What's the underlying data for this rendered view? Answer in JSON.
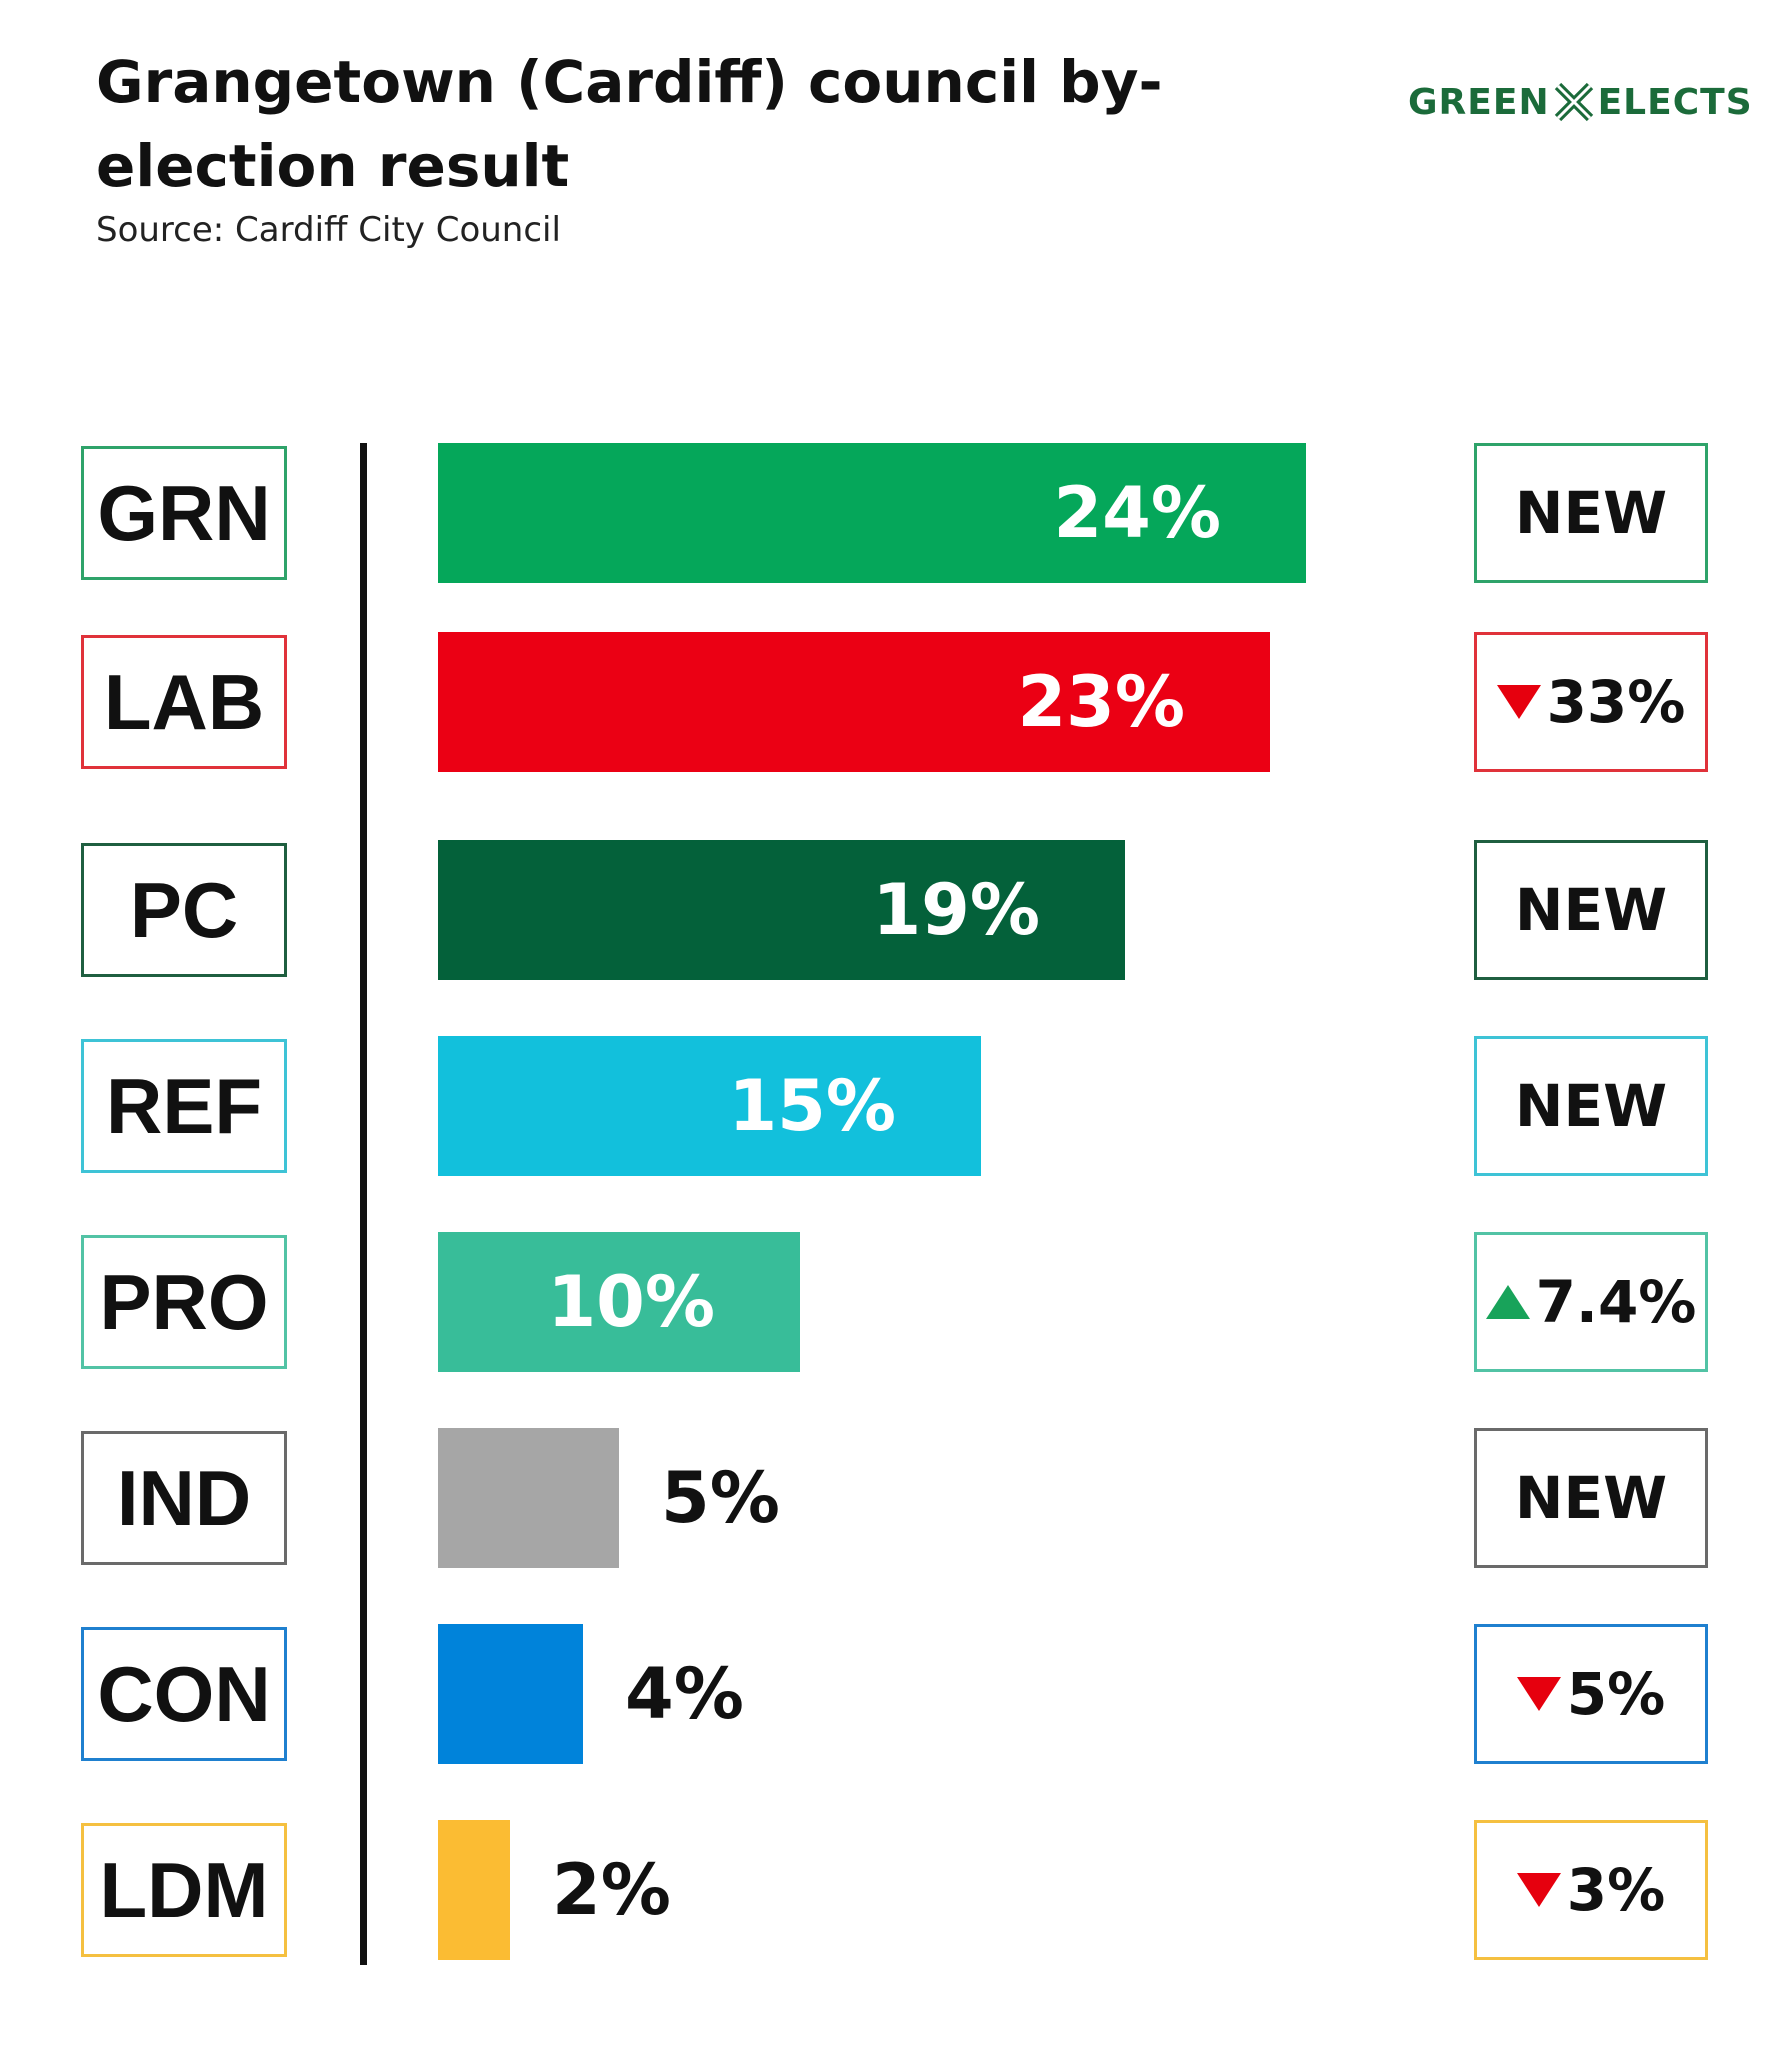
{
  "header": {
    "title": "Grangetown (Cardiff) council by-election result",
    "subtitle": "Source: Cardiff City Council",
    "logo_left": "GREEN",
    "logo_right": "ELECTS",
    "logo_color": "#1b6b3a"
  },
  "chart_data": {
    "type": "bar",
    "orientation": "horizontal",
    "title": "Grangetown (Cardiff) council by-election result",
    "subtitle": "Source: Cardiff City Council",
    "xlabel": "",
    "ylabel": "",
    "xlim": [
      0,
      30
    ],
    "grid": false,
    "legend": "none",
    "categories": [
      "GRN",
      "LAB",
      "PC",
      "REF",
      "PRO",
      "IND",
      "CON",
      "LDM"
    ],
    "values": [
      24,
      23,
      19,
      15,
      10,
      5,
      4,
      2
    ],
    "value_labels": [
      "24%",
      "23%",
      "19%",
      "15%",
      "10%",
      "5%",
      "4%",
      "2%"
    ],
    "changes": [
      "NEW",
      "33%",
      "NEW",
      "NEW",
      "7.4%",
      "NEW",
      "5%",
      "3%"
    ],
    "change_direction": [
      "none",
      "down",
      "none",
      "none",
      "up",
      "none",
      "down",
      "down"
    ],
    "colors": [
      "#05a75a",
      "#eb0014",
      "#04613a",
      "#12c0dc",
      "#38bd99",
      "#a6a6a6",
      "#0083da",
      "#fbbc33"
    ],
    "box_border_colors": [
      "#2fa36a",
      "#e0323a",
      "#1f5f40",
      "#3ec3d6",
      "#52c3a5",
      "#6a6a6a",
      "#1f80cf",
      "#f5c040"
    ]
  }
}
